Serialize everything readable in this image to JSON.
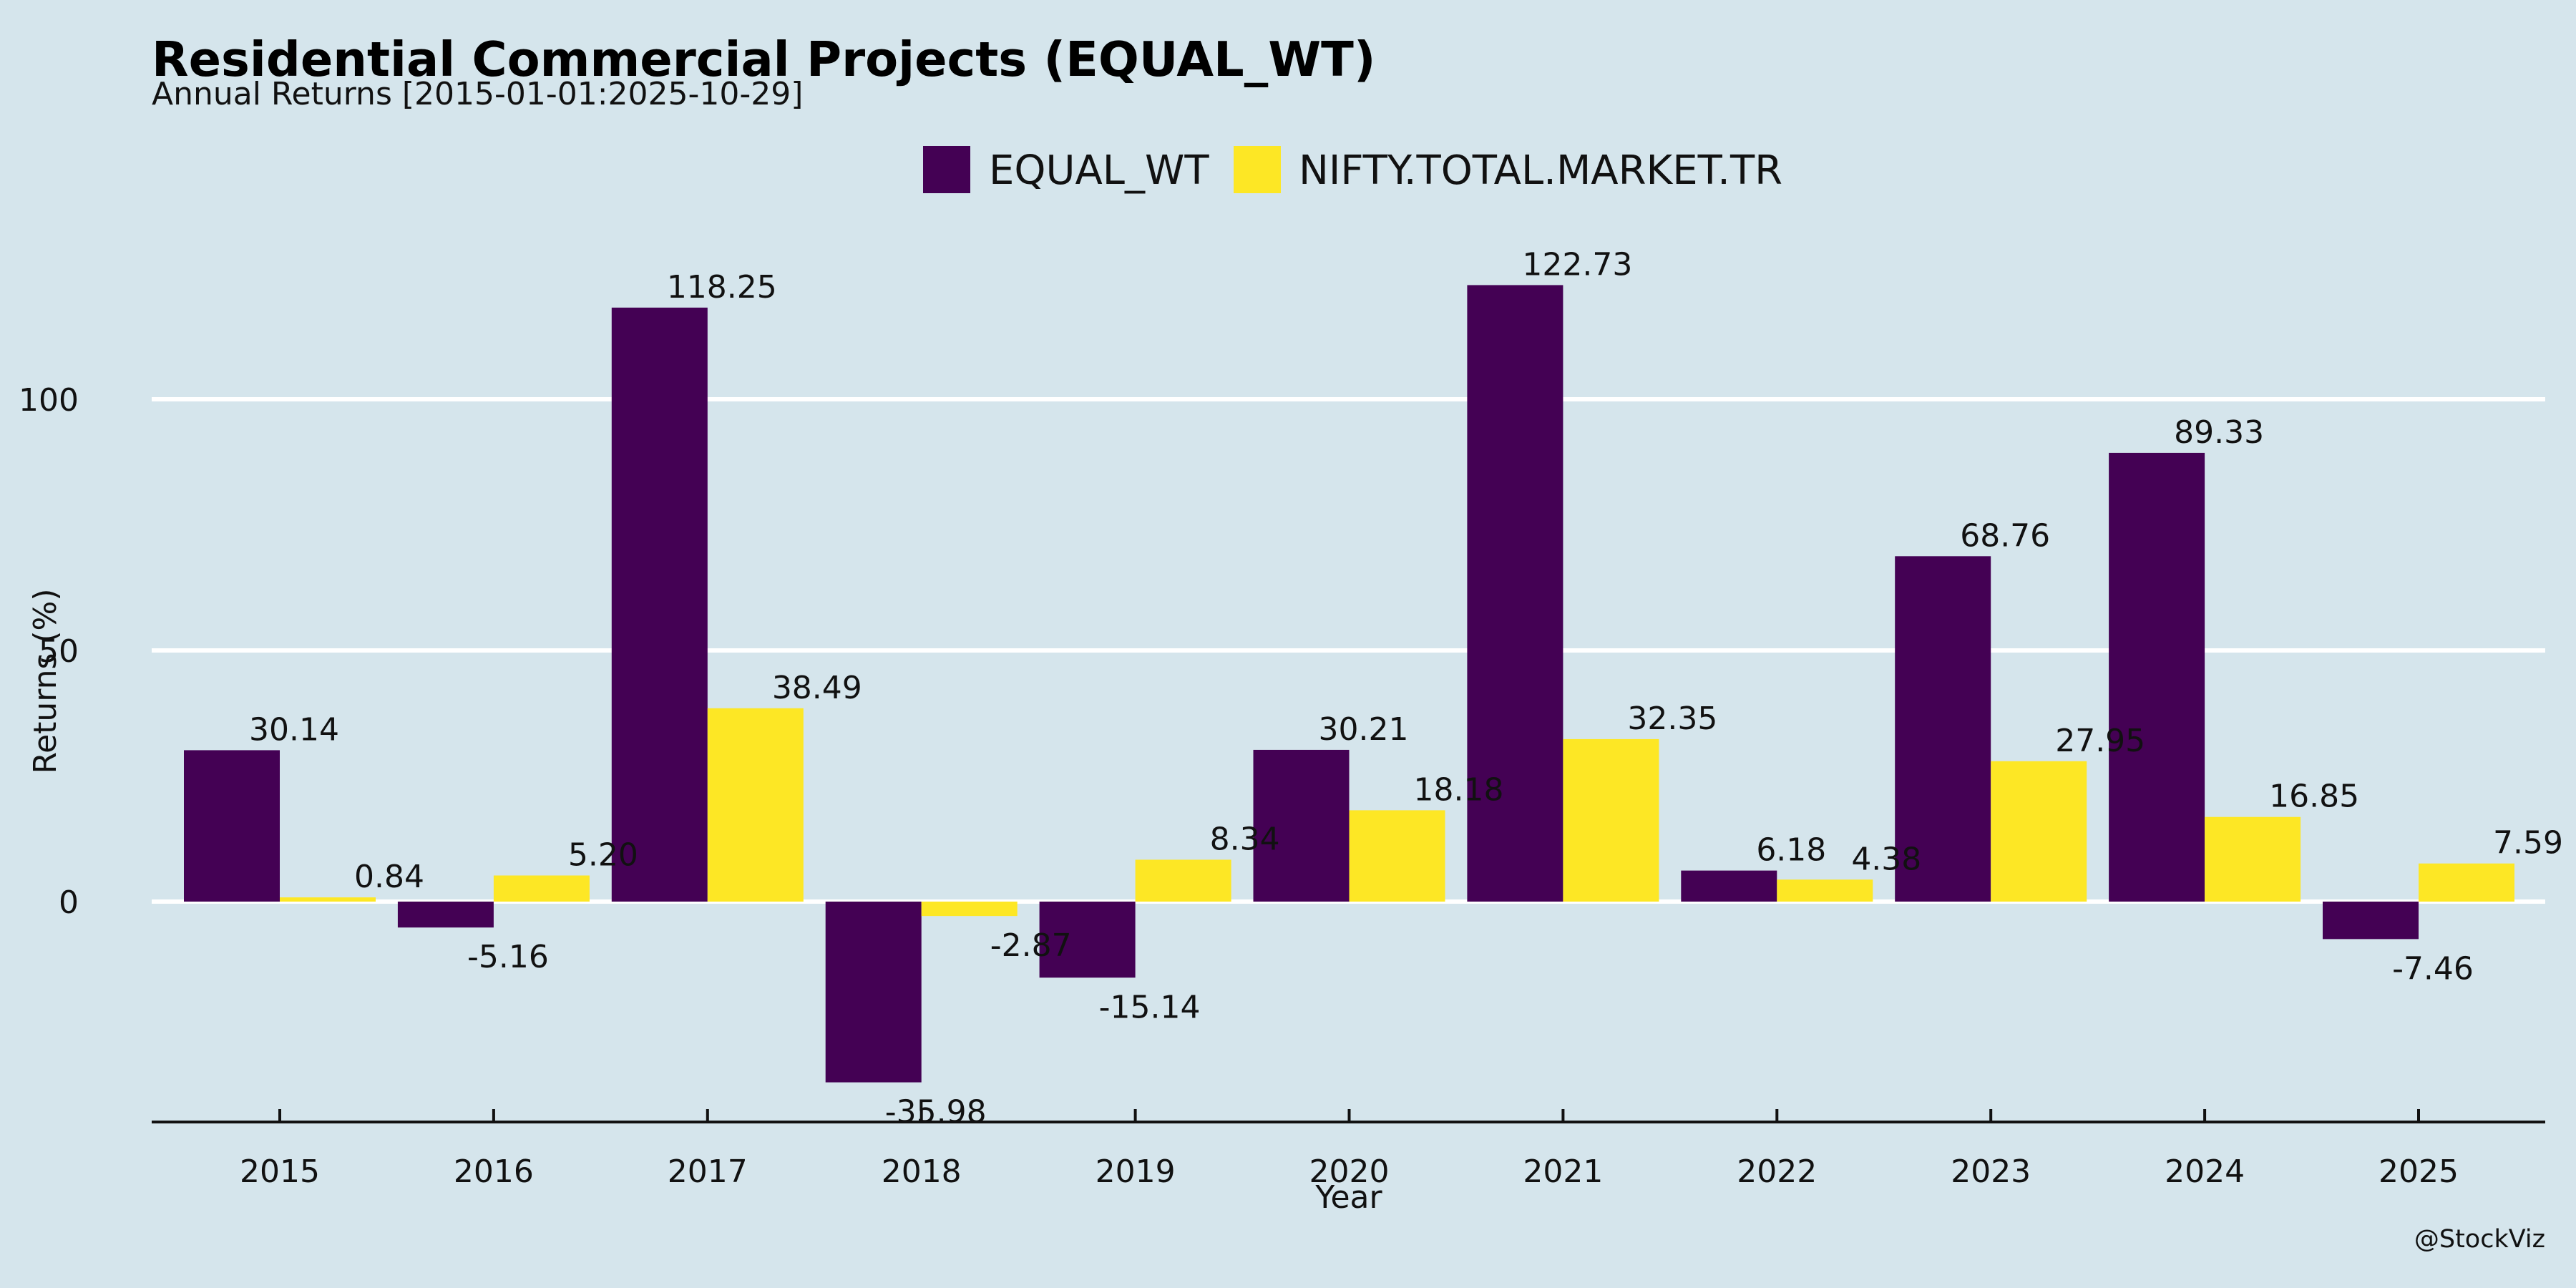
{
  "chart_data": {
    "type": "bar",
    "title": "Residential Commercial Projects (EQUAL_WT)",
    "subtitle": "Annual Returns [2015-01-01:2025-10-29]",
    "xlabel": "Year",
    "ylabel": "Returns (%)",
    "categories": [
      "2015",
      "2016",
      "2017",
      "2018",
      "2019",
      "2020",
      "2021",
      "2022",
      "2023",
      "2024",
      "2025"
    ],
    "series": [
      {
        "name": "EQUAL_WT",
        "color": "#440154",
        "values": [
          30.14,
          -5.16,
          118.25,
          -35.98,
          -15.14,
          30.21,
          122.73,
          6.18,
          68.76,
          89.33,
          -7.46
        ],
        "labels": [
          "30.14",
          "-5.16",
          "118.25",
          "-35.98",
          "-15.14",
          "30.21",
          "122.73",
          "6.18",
          "68.76",
          "89.33",
          "-7.46"
        ]
      },
      {
        "name": "NIFTY.TOTAL.MARKET.TR",
        "color": "#fde725",
        "values": [
          0.84,
          5.2,
          38.49,
          -2.87,
          8.34,
          18.18,
          32.35,
          4.38,
          27.95,
          16.85,
          7.59
        ],
        "labels": [
          "0.84",
          "5.20",
          "38.49",
          "-2.87",
          "8.34",
          "18.18",
          "32.35",
          "4.38",
          "27.95",
          "16.85",
          "7.59"
        ]
      }
    ],
    "yticks": [
      0,
      50,
      100
    ],
    "ytick_labels": [
      "0",
      "50",
      "100"
    ],
    "ylim": [
      -44,
      130
    ],
    "grid": "horizontal",
    "legend_position": "top-center",
    "credit": "@StockViz"
  }
}
